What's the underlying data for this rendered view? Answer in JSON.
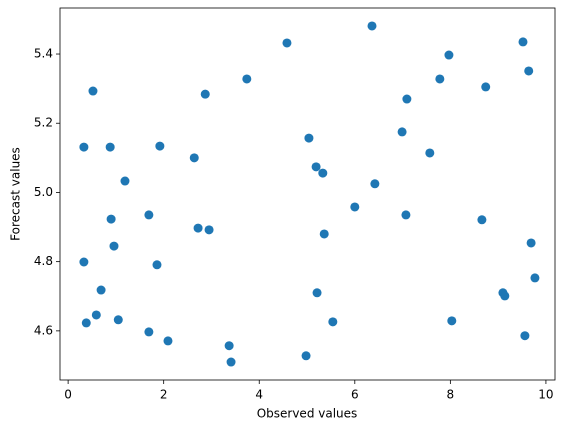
{
  "chart_data": {
    "type": "scatter",
    "xlabel": "Observed values",
    "ylabel": "Forecast values",
    "color": "#1f77b4",
    "xlim": [
      -0.17,
      10.19
    ],
    "ylim": [
      4.458,
      5.533
    ],
    "xticks": [
      0,
      2,
      4,
      6,
      8,
      10
    ],
    "yticks": [
      4.6,
      4.8,
      {
        "value": 5,
        "label": "5.0"
      },
      5.2,
      5.4
    ],
    "grid": false,
    "x": [
      0.33,
      0.33,
      0.38,
      0.52,
      0.59,
      0.69,
      0.88,
      0.9,
      0.96,
      1.05,
      1.19,
      1.69,
      1.69,
      1.86,
      1.92,
      2.09,
      2.64,
      2.72,
      2.87,
      2.95,
      3.37,
      3.41,
      3.74,
      4.58,
      4.98,
      5.04,
      5.19,
      5.21,
      5.33,
      5.36,
      5.54,
      6.0,
      6.36,
      6.42,
      6.99,
      7.07,
      7.09,
      7.57,
      7.78,
      7.97,
      8.03,
      8.66,
      8.74,
      9.1,
      9.14,
      9.52,
      9.56,
      9.64,
      9.69,
      9.77
    ],
    "values": [
      5.131,
      4.799,
      4.623,
      5.293,
      4.646,
      4.718,
      5.131,
      4.923,
      4.845,
      4.632,
      5.033,
      4.935,
      4.597,
      4.791,
      5.134,
      4.571,
      5.1,
      4.897,
      5.284,
      4.892,
      4.557,
      4.51,
      5.328,
      5.432,
      4.528,
      5.157,
      5.074,
      4.71,
      5.056,
      4.88,
      4.626,
      4.958,
      5.481,
      5.025,
      5.175,
      4.935,
      5.27,
      5.114,
      5.328,
      5.397,
      4.629,
      4.921,
      5.305,
      4.71,
      4.701,
      5.435,
      4.586,
      5.351,
      4.854,
      4.753
    ]
  }
}
